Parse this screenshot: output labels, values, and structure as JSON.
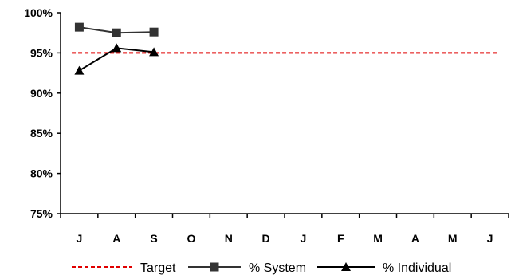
{
  "chart_data": {
    "type": "line",
    "categories": [
      "J",
      "A",
      "S",
      "O",
      "N",
      "D",
      "J",
      "F",
      "M",
      "A",
      "M",
      "J"
    ],
    "y_tick_labels": [
      "75%",
      "80%",
      "85%",
      "90%",
      "95%",
      "100%"
    ],
    "y_ticks": [
      75,
      80,
      85,
      90,
      95,
      100
    ],
    "ylim": [
      75,
      100
    ],
    "grid": false,
    "legend_position": "bottom",
    "title": "",
    "xlabel": "",
    "ylabel": "",
    "series": [
      {
        "name": "Target",
        "values": [
          95,
          95,
          95,
          95,
          95,
          95,
          95,
          95,
          95,
          95,
          95,
          95
        ],
        "color": "#e00000",
        "style": "dashed",
        "marker": "none"
      },
      {
        "name": "% System",
        "values": [
          98.2,
          97.5,
          97.6,
          null,
          null,
          null,
          null,
          null,
          null,
          null,
          null,
          null
        ],
        "color": "#333333",
        "style": "solid",
        "marker": "square"
      },
      {
        "name": "% Individual",
        "values": [
          92.8,
          95.6,
          95.1,
          null,
          null,
          null,
          null,
          null,
          null,
          null,
          null,
          null
        ],
        "color": "#000000",
        "style": "solid",
        "marker": "triangle"
      }
    ]
  }
}
